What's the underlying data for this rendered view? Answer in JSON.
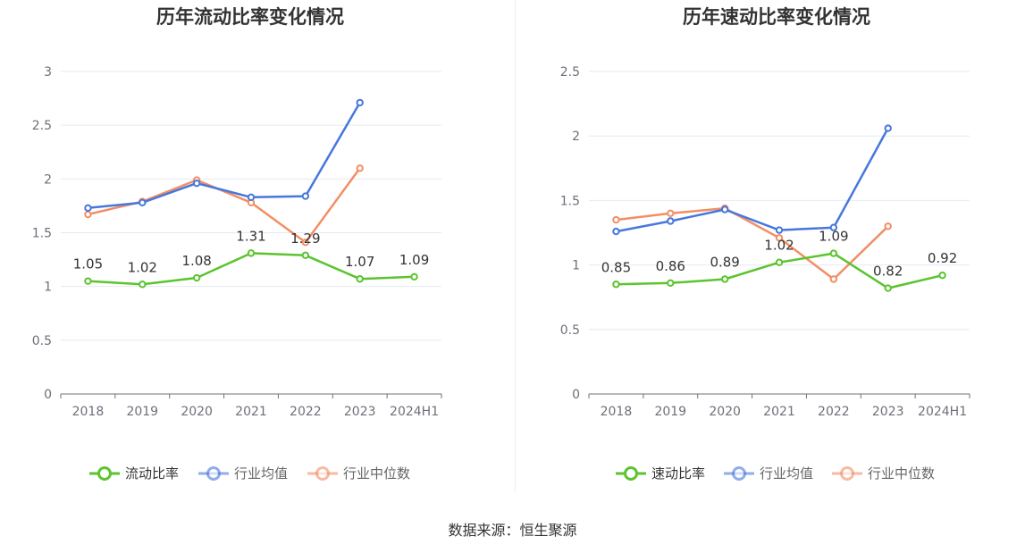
{
  "charts": [
    {
      "title": "历年流动比率变化情况",
      "categories": [
        "2018",
        "2019",
        "2020",
        "2021",
        "2022",
        "2023",
        "2024H1"
      ],
      "yTicks": [
        "0",
        "0.5",
        "1",
        "1.5",
        "2",
        "2.5",
        "3"
      ],
      "legend": [
        "流动比率",
        "行业均值",
        "行业中位数"
      ]
    },
    {
      "title": "历年速动比率变化情况",
      "categories": [
        "2018",
        "2019",
        "2020",
        "2021",
        "2022",
        "2023",
        "2024H1"
      ],
      "yTicks": [
        "0",
        "0.5",
        "1",
        "1.5",
        "2",
        "2.5"
      ],
      "legend": [
        "速动比率",
        "行业均值",
        "行业中位数"
      ]
    }
  ],
  "colors": {
    "main": "#5bc42f",
    "avg": "#4777dd",
    "median": "#f28e64",
    "grid": "#e6e9f5",
    "axis": "#6e7079"
  },
  "chart_data": [
    {
      "type": "line",
      "title": "历年流动比率变化情况",
      "categories": [
        "2018",
        "2019",
        "2020",
        "2021",
        "2022",
        "2023",
        "2024H1"
      ],
      "ylim": [
        0,
        3
      ],
      "grid": true,
      "legend_position": "bottom",
      "series": [
        {
          "name": "流动比率",
          "values": [
            1.05,
            1.02,
            1.08,
            1.31,
            1.29,
            1.07,
            1.09
          ],
          "labels": [
            "1.05",
            "1.02",
            "1.08",
            "1.31",
            "1.29",
            "1.07",
            "1.09"
          ]
        },
        {
          "name": "行业均值",
          "values": [
            1.73,
            1.78,
            1.96,
            1.83,
            1.84,
            2.71,
            null
          ]
        },
        {
          "name": "行业中位数",
          "values": [
            1.67,
            1.79,
            1.99,
            1.78,
            1.41,
            2.1,
            null
          ]
        }
      ]
    },
    {
      "type": "line",
      "title": "历年速动比率变化情况",
      "categories": [
        "2018",
        "2019",
        "2020",
        "2021",
        "2022",
        "2023",
        "2024H1"
      ],
      "ylim": [
        0,
        2.5
      ],
      "grid": true,
      "legend_position": "bottom",
      "series": [
        {
          "name": "速动比率",
          "values": [
            0.85,
            0.86,
            0.89,
            1.02,
            1.09,
            0.82,
            0.92
          ],
          "labels": [
            "0.85",
            "0.86",
            "0.89",
            "1.02",
            "1.09",
            "0.82",
            "0.92"
          ]
        },
        {
          "name": "行业均值",
          "values": [
            1.26,
            1.34,
            1.43,
            1.27,
            1.29,
            2.06,
            null
          ]
        },
        {
          "name": "行业中位数",
          "values": [
            1.35,
            1.4,
            1.44,
            1.21,
            0.89,
            1.3,
            null
          ]
        }
      ]
    }
  ],
  "source": "数据来源：恒生聚源"
}
